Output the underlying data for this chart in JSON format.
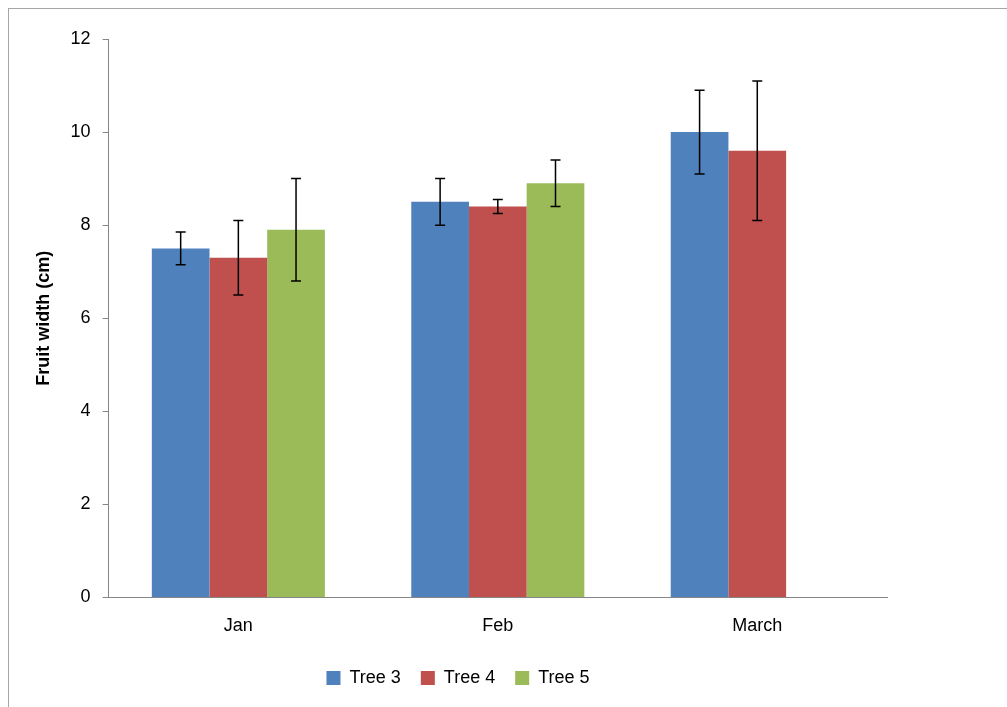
{
  "chart_data": {
    "type": "bar",
    "ylabel": "Fruit width (cm)",
    "categories": [
      "Jan",
      "Feb",
      "March"
    ],
    "series": [
      {
        "name": "Tree 3",
        "color": "#4f81bd",
        "values": [
          7.5,
          8.5,
          10
        ],
        "errors": [
          0.35,
          0.5,
          0.9
        ]
      },
      {
        "name": "Tree 4",
        "color": "#c0504d",
        "values": [
          7.3,
          8.4,
          9.6
        ],
        "errors": [
          0.8,
          0.15,
          1.5
        ]
      },
      {
        "name": "Tree 5",
        "color": "#9bbb59",
        "values": [
          7.9,
          8.9,
          null
        ],
        "errors": [
          1.1,
          0.5,
          null
        ]
      }
    ],
    "ylim": [
      0,
      12
    ],
    "yticks": [
      0,
      2,
      4,
      6,
      8,
      10,
      12
    ],
    "grid": false,
    "legend": "bottom"
  }
}
